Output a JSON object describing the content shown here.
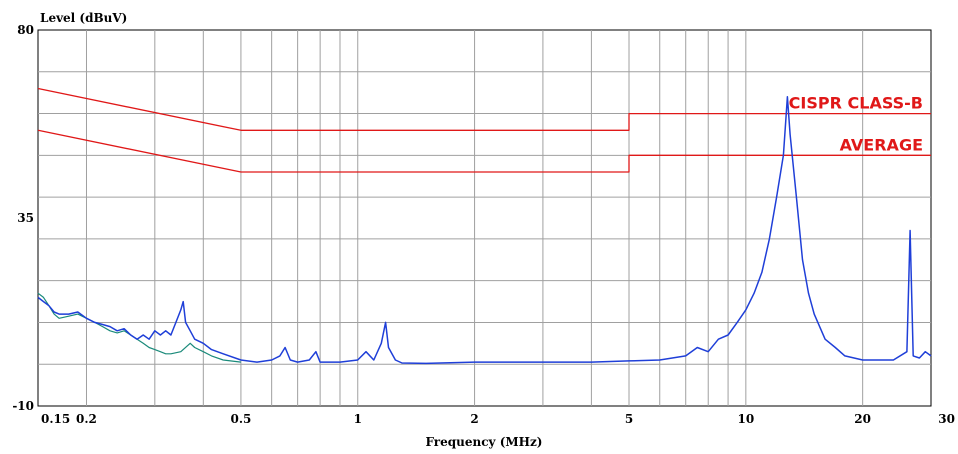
{
  "chart_data": {
    "type": "line",
    "title": "",
    "ylabel": "Level (dBuV)",
    "xlabel": "Frequency (MHz)",
    "x_scale": "log",
    "xlim": [
      0.15,
      30
    ],
    "ylim": [
      -10,
      80
    ],
    "y_ticks": [
      {
        "value": 80,
        "label": "80"
      },
      {
        "value": 35,
        "label": "35"
      },
      {
        "value": -10,
        "label": "-10"
      }
    ],
    "x_ticks": [
      {
        "value": 0.15,
        "label": "0.15"
      },
      {
        "value": 0.2,
        "label": "0.2"
      },
      {
        "value": 0.5,
        "label": "0.5"
      },
      {
        "value": 1,
        "label": "1"
      },
      {
        "value": 2,
        "label": "2"
      },
      {
        "value": 5,
        "label": "5"
      },
      {
        "value": 10,
        "label": "10"
      },
      {
        "value": 20,
        "label": "20"
      },
      {
        "value": 30,
        "label": "30"
      }
    ],
    "grid": true,
    "colors": {
      "background": "#ffffff",
      "grid": "#a0a0a0",
      "limit": "#e01818",
      "trace_main": "#1f3fd8",
      "trace_secondary": "#1a8a7a"
    },
    "limit_labels": [
      {
        "text": "CISPR CLASS-B",
        "series": 0
      },
      {
        "text": "AVERAGE",
        "series": 1
      }
    ],
    "series": [
      {
        "style": "limit",
        "points": [
          [
            0.15,
            66
          ],
          [
            0.5,
            56
          ],
          [
            5,
            56
          ],
          [
            5,
            60
          ],
          [
            30,
            60
          ]
        ]
      },
      {
        "style": "limit",
        "points": [
          [
            0.15,
            56
          ],
          [
            0.5,
            46
          ],
          [
            5,
            46
          ],
          [
            5,
            50
          ],
          [
            30,
            50
          ]
        ]
      },
      {
        "style": "trace_secondary",
        "points": [
          [
            0.15,
            17
          ],
          [
            0.155,
            16
          ],
          [
            0.16,
            14
          ],
          [
            0.165,
            12
          ],
          [
            0.17,
            11
          ],
          [
            0.18,
            11.5
          ],
          [
            0.19,
            12
          ],
          [
            0.2,
            11
          ],
          [
            0.21,
            10
          ],
          [
            0.22,
            9
          ],
          [
            0.23,
            8
          ],
          [
            0.24,
            7.5
          ],
          [
            0.25,
            8
          ],
          [
            0.26,
            7
          ],
          [
            0.27,
            6
          ],
          [
            0.28,
            5
          ],
          [
            0.29,
            4
          ],
          [
            0.3,
            3.5
          ],
          [
            0.31,
            3
          ],
          [
            0.32,
            2.5
          ],
          [
            0.33,
            2.5
          ],
          [
            0.35,
            3
          ],
          [
            0.37,
            5
          ],
          [
            0.38,
            4
          ],
          [
            0.4,
            3
          ],
          [
            0.42,
            2
          ],
          [
            0.45,
            1
          ],
          [
            0.5,
            0.5
          ]
        ]
      },
      {
        "style": "trace_main",
        "points": [
          [
            0.15,
            16
          ],
          [
            0.155,
            15
          ],
          [
            0.16,
            14
          ],
          [
            0.165,
            12.5
          ],
          [
            0.17,
            12
          ],
          [
            0.18,
            12
          ],
          [
            0.19,
            12.5
          ],
          [
            0.2,
            11
          ],
          [
            0.21,
            10
          ],
          [
            0.22,
            9.5
          ],
          [
            0.23,
            9
          ],
          [
            0.24,
            8
          ],
          [
            0.25,
            8.5
          ],
          [
            0.26,
            7
          ],
          [
            0.27,
            6
          ],
          [
            0.28,
            7
          ],
          [
            0.29,
            6
          ],
          [
            0.3,
            8
          ],
          [
            0.31,
            7
          ],
          [
            0.32,
            8
          ],
          [
            0.33,
            7
          ],
          [
            0.34,
            10
          ],
          [
            0.35,
            13
          ],
          [
            0.355,
            15
          ],
          [
            0.36,
            10
          ],
          [
            0.37,
            8
          ],
          [
            0.38,
            6
          ],
          [
            0.4,
            5
          ],
          [
            0.42,
            3.5
          ],
          [
            0.45,
            2.5
          ],
          [
            0.5,
            1
          ],
          [
            0.55,
            0.5
          ],
          [
            0.6,
            1
          ],
          [
            0.63,
            2
          ],
          [
            0.65,
            4
          ],
          [
            0.67,
            1
          ],
          [
            0.7,
            0.5
          ],
          [
            0.75,
            1
          ],
          [
            0.78,
            3
          ],
          [
            0.8,
            0.5
          ],
          [
            0.9,
            0.5
          ],
          [
            1.0,
            1
          ],
          [
            1.05,
            3
          ],
          [
            1.1,
            1
          ],
          [
            1.15,
            5
          ],
          [
            1.18,
            10
          ],
          [
            1.2,
            4
          ],
          [
            1.25,
            1
          ],
          [
            1.3,
            0.3
          ],
          [
            1.5,
            0.2
          ],
          [
            2,
            0.5
          ],
          [
            2.5,
            0.5
          ],
          [
            3,
            0.5
          ],
          [
            4,
            0.5
          ],
          [
            5,
            0.8
          ],
          [
            6,
            1
          ],
          [
            7,
            2
          ],
          [
            7.5,
            4
          ],
          [
            8,
            3
          ],
          [
            8.5,
            6
          ],
          [
            9,
            7
          ],
          [
            9.5,
            10
          ],
          [
            10,
            13
          ],
          [
            10.5,
            17
          ],
          [
            11,
            22
          ],
          [
            11.5,
            30
          ],
          [
            12,
            40
          ],
          [
            12.5,
            50
          ],
          [
            12.8,
            64
          ],
          [
            13,
            55
          ],
          [
            13.5,
            40
          ],
          [
            14,
            25
          ],
          [
            14.5,
            17
          ],
          [
            15,
            12
          ],
          [
            16,
            6
          ],
          [
            17,
            4
          ],
          [
            18,
            2
          ],
          [
            20,
            1
          ],
          [
            22,
            1
          ],
          [
            24,
            1
          ],
          [
            26,
            3
          ],
          [
            26.5,
            32
          ],
          [
            27,
            2
          ],
          [
            28,
            1.5
          ],
          [
            29,
            3
          ],
          [
            30,
            2
          ]
        ]
      }
    ]
  }
}
